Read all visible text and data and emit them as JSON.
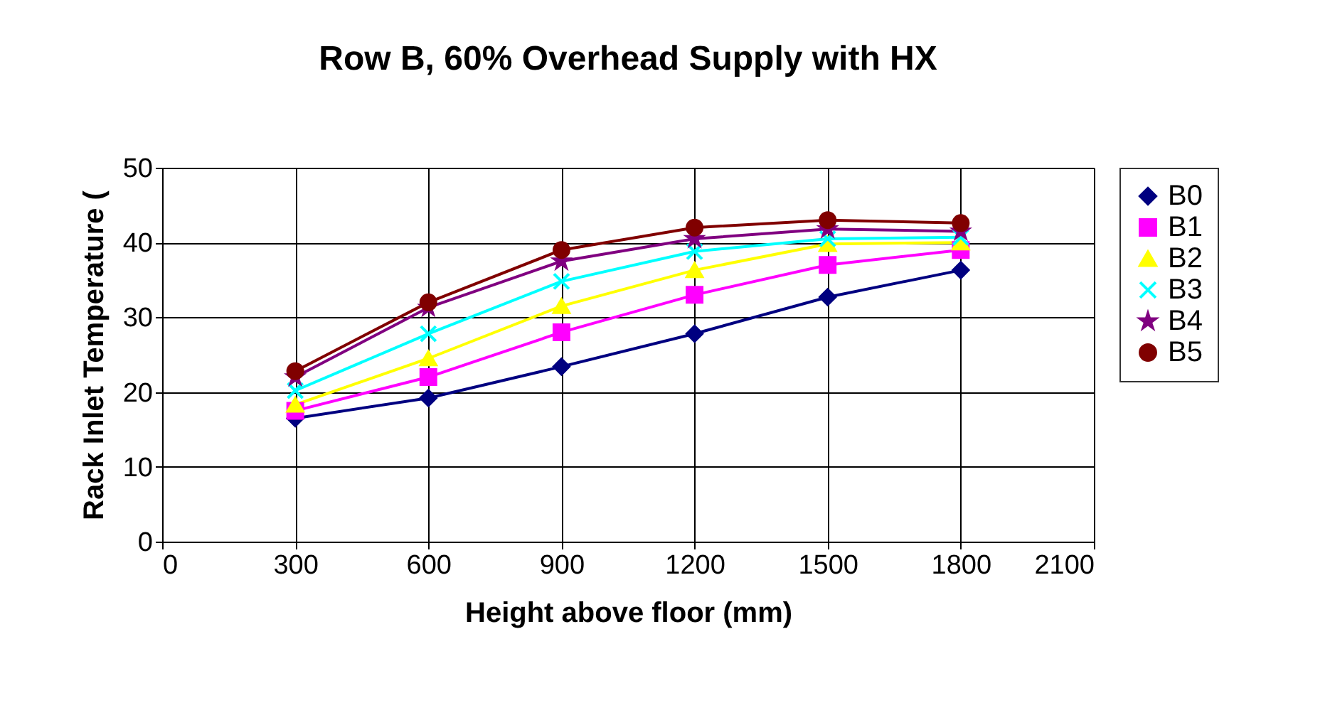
{
  "chart_data": {
    "type": "line",
    "title": "Row B, 60% Overhead Supply with HX",
    "xlabel": "Height above floor (mm)",
    "ylabel": "Rack Inlet Temperature (",
    "x": [
      300,
      600,
      900,
      1200,
      1500,
      1800
    ],
    "xlim": [
      0,
      2100
    ],
    "xticks": [
      0,
      300,
      600,
      900,
      1200,
      1500,
      1800,
      2100
    ],
    "ylim": [
      0,
      50
    ],
    "yticks": [
      0,
      10,
      20,
      30,
      40,
      50
    ],
    "grid": true,
    "legend": "right",
    "line_style": "solid",
    "series": [
      {
        "name": "B0",
        "color": "#000080",
        "marker": "diamond",
        "values": [
          16.5,
          19.2,
          23.4,
          27.8,
          32.7,
          36.3
        ]
      },
      {
        "name": "B1",
        "color": "#ff00ff",
        "marker": "square",
        "values": [
          17.5,
          22,
          28,
          33,
          37,
          39
        ]
      },
      {
        "name": "B2",
        "color": "#ffff00",
        "marker": "triangle",
        "values": [
          18.3,
          24.5,
          31.5,
          36.3,
          39.8,
          40
        ]
      },
      {
        "name": "B3",
        "color": "#00ffff",
        "marker": "cross",
        "values": [
          20.2,
          27.8,
          34.8,
          38.8,
          40.5,
          40.7
        ]
      },
      {
        "name": "B4",
        "color": "#800080",
        "marker": "star",
        "values": [
          22,
          31.3,
          37.5,
          40.5,
          41.8,
          41.5
        ]
      },
      {
        "name": "B5",
        "color": "#800000",
        "marker": "circle",
        "values": [
          22.8,
          32,
          39,
          42,
          43,
          42.6
        ]
      }
    ]
  }
}
